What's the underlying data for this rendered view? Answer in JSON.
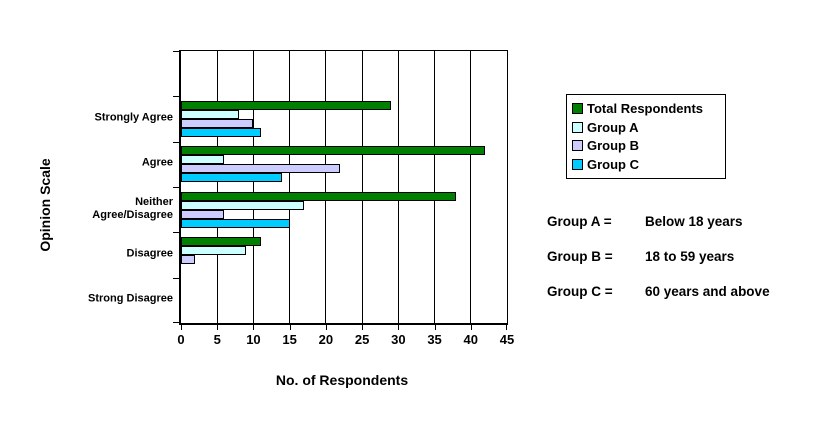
{
  "chart_data": {
    "type": "bar",
    "orientation": "horizontal",
    "title": "",
    "xlabel": "No. of Respondents",
    "ylabel": "Opinion Scale",
    "xlim": [
      0,
      45
    ],
    "xticks": [
      0,
      5,
      10,
      15,
      20,
      25,
      30,
      35,
      40,
      45
    ],
    "grid": true,
    "grid_color": "#000000",
    "background": "#FFFFFF",
    "legend_position": "right",
    "leading_empty_band": true,
    "categories": [
      "Strongly Agree",
      "Agree",
      "Neither Agree/Disagree",
      "Disagree",
      "Strong Disagree"
    ],
    "series": [
      {
        "name": "Total Respondents",
        "color": "#008000",
        "values": [
          29,
          42,
          38,
          11,
          0
        ]
      },
      {
        "name": "Group A",
        "color": "#CCFFFF",
        "values": [
          8,
          6,
          17,
          9,
          0
        ]
      },
      {
        "name": "Group B",
        "color": "#CCCCFF",
        "values": [
          10,
          22,
          6,
          2,
          0
        ]
      },
      {
        "name": "Group C",
        "color": "#00CCFF",
        "values": [
          11,
          14,
          15,
          0,
          0
        ]
      }
    ]
  },
  "annotations": [
    {
      "label": "Group A =",
      "text": "Below 18 years"
    },
    {
      "label": "Group B =",
      "text": "18 to 59 years"
    },
    {
      "label": "Group C =",
      "text": "60 years and above"
    }
  ]
}
